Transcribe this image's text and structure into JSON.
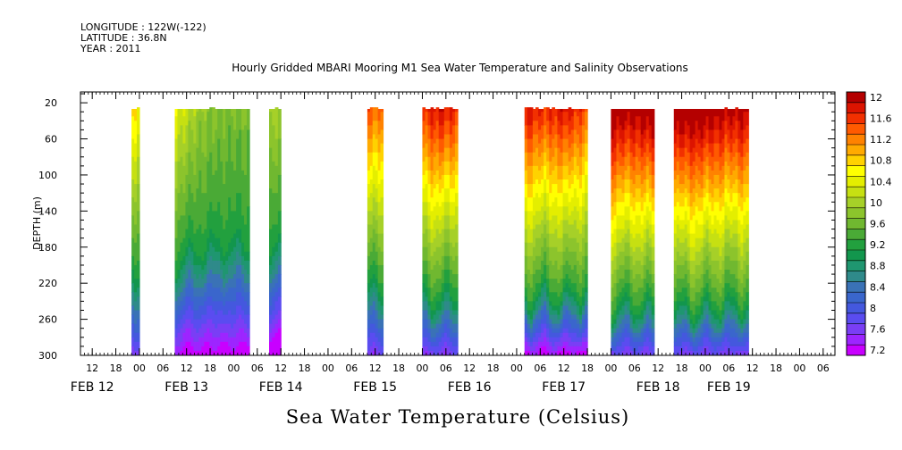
{
  "header": {
    "longitude": "LONGITUDE : 122W(-122)",
    "latitude": "LATITUDE : 36.8N",
    "year": "YEAR : 2011"
  },
  "chart_data": {
    "type": "heatmap",
    "title": "Hourly Gridded MBARI Mooring M1 Sea Water Temperature and Salinity Observations",
    "variable_label": "Sea Water Temperature (Celsius)",
    "ylabel": "DEPTH (m)",
    "ylim": [
      300,
      8
    ],
    "y_ticks": [
      20,
      60,
      100,
      140,
      180,
      220,
      260,
      300
    ],
    "x_range_hours": [
      -15,
      177
    ],
    "x_hour_ticks": [
      {
        "h": -12,
        "label": "12"
      },
      {
        "h": -6,
        "label": "18"
      },
      {
        "h": 0,
        "label": "00"
      },
      {
        "h": 6,
        "label": "06"
      },
      {
        "h": 12,
        "label": "12"
      },
      {
        "h": 18,
        "label": "18"
      },
      {
        "h": 24,
        "label": "00"
      },
      {
        "h": 30,
        "label": "06"
      },
      {
        "h": 36,
        "label": "12"
      },
      {
        "h": 42,
        "label": "18"
      },
      {
        "h": 48,
        "label": "00"
      },
      {
        "h": 54,
        "label": "06"
      },
      {
        "h": 60,
        "label": "12"
      },
      {
        "h": 66,
        "label": "18"
      },
      {
        "h": 72,
        "label": "00"
      },
      {
        "h": 78,
        "label": "06"
      },
      {
        "h": 84,
        "label": "12"
      },
      {
        "h": 90,
        "label": "18"
      },
      {
        "h": 96,
        "label": "00"
      },
      {
        "h": 102,
        "label": "06"
      },
      {
        "h": 108,
        "label": "12"
      },
      {
        "h": 114,
        "label": "18"
      },
      {
        "h": 120,
        "label": "00"
      },
      {
        "h": 126,
        "label": "06"
      },
      {
        "h": 132,
        "label": "12"
      },
      {
        "h": 138,
        "label": "18"
      },
      {
        "h": 144,
        "label": "00"
      },
      {
        "h": 150,
        "label": "06"
      },
      {
        "h": 156,
        "label": "12"
      },
      {
        "h": 162,
        "label": "18"
      },
      {
        "h": 168,
        "label": "00"
      },
      {
        "h": 174,
        "label": "06"
      }
    ],
    "date_labels": [
      {
        "h": -12,
        "label": "FEB 12"
      },
      {
        "h": 12,
        "label": "FEB 13"
      },
      {
        "h": 36,
        "label": "FEB 14"
      },
      {
        "h": 60,
        "label": "FEB 15"
      },
      {
        "h": 84,
        "label": "FEB 16"
      },
      {
        "h": 108,
        "label": "FEB 17"
      },
      {
        "h": 132,
        "label": "FEB 18"
      },
      {
        "h": 150,
        "label": "FEB 19"
      }
    ],
    "colorbar": {
      "levels": [
        7.2,
        7.4,
        7.6,
        7.8,
        8.0,
        8.2,
        8.4,
        8.6,
        8.8,
        9.0,
        9.2,
        9.4,
        9.6,
        9.8,
        10.0,
        10.2,
        10.4,
        10.6,
        10.8,
        11.0,
        11.2,
        11.4,
        11.6,
        11.8,
        12.0,
        12.2
      ],
      "labels": [
        "7.2",
        "7.6",
        "8",
        "8.4",
        "8.8",
        "9.2",
        "9.6",
        "10",
        "10.4",
        "10.8",
        "11.2",
        "11.6",
        "12"
      ],
      "colors": [
        "#c800ff",
        "#9d25ff",
        "#7a3ef5",
        "#5a4cf0",
        "#4458de",
        "#3a66cc",
        "#3a72b6",
        "#2f8a8a",
        "#1f9670",
        "#12964d",
        "#22a03e",
        "#4aaa36",
        "#70b830",
        "#8cc42c",
        "#a6d028",
        "#c6e012",
        "#e4ee00",
        "#ffff00",
        "#ffd200",
        "#ffaa00",
        "#ff8200",
        "#ff5a00",
        "#f23000",
        "#dc1400",
        "#b40000"
      ]
    },
    "segments": [
      {
        "start": -2,
        "end": 0,
        "top": [
          11.0,
          10.6
        ],
        "bottom": 7.6
      },
      {
        "start": 9,
        "end": 28,
        "top": [
          10.6,
          10.0,
          9.8,
          9.8
        ],
        "bottom": 7.2
      },
      {
        "start": 33,
        "end": 36,
        "top": [
          10.2,
          10.0
        ],
        "bottom": 7.0
      },
      {
        "start": 58,
        "end": 62,
        "top": [
          11.6,
          11.4
        ],
        "bottom": 7.6
      },
      {
        "start": 72,
        "end": 81,
        "top": [
          11.8,
          12.0,
          11.8
        ],
        "bottom": 7.6
      },
      {
        "start": 98,
        "end": 114,
        "top": [
          12.0,
          11.8,
          12.0,
          11.6
        ],
        "bottom": 7.2
      },
      {
        "start": 120,
        "end": 131,
        "top": [
          12.4,
          12.2,
          12.4
        ],
        "bottom": 7.6
      },
      {
        "start": 136,
        "end": 155,
        "top": [
          12.4,
          12.4,
          12.2,
          12.2
        ],
        "bottom": 7.6
      }
    ]
  }
}
